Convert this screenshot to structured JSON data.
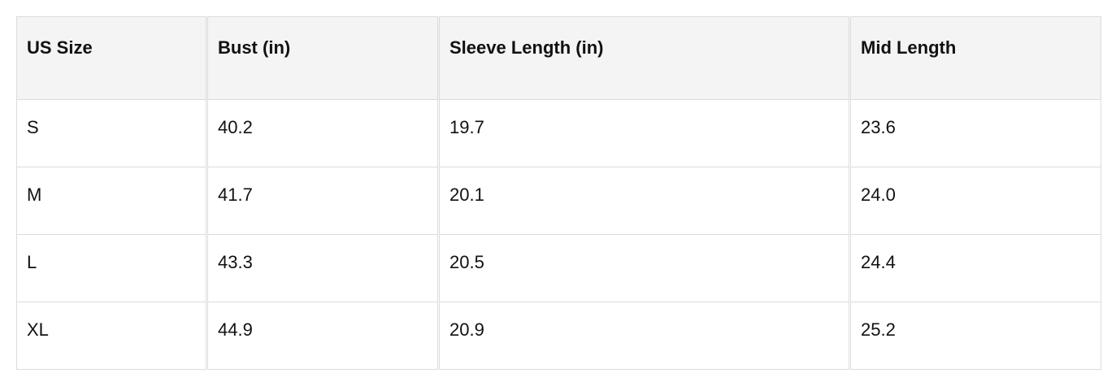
{
  "table": {
    "headers": [
      "US Size",
      "Bust (in)",
      "Sleeve Length (in)",
      "Mid Length"
    ],
    "rows": [
      [
        "S",
        "40.2",
        "19.7",
        "23.6"
      ],
      [
        "M",
        "41.7",
        "20.1",
        "24.0"
      ],
      [
        "L",
        "43.3",
        "20.5",
        "24.4"
      ],
      [
        "XL",
        "44.9",
        "20.9",
        "25.2"
      ]
    ]
  }
}
